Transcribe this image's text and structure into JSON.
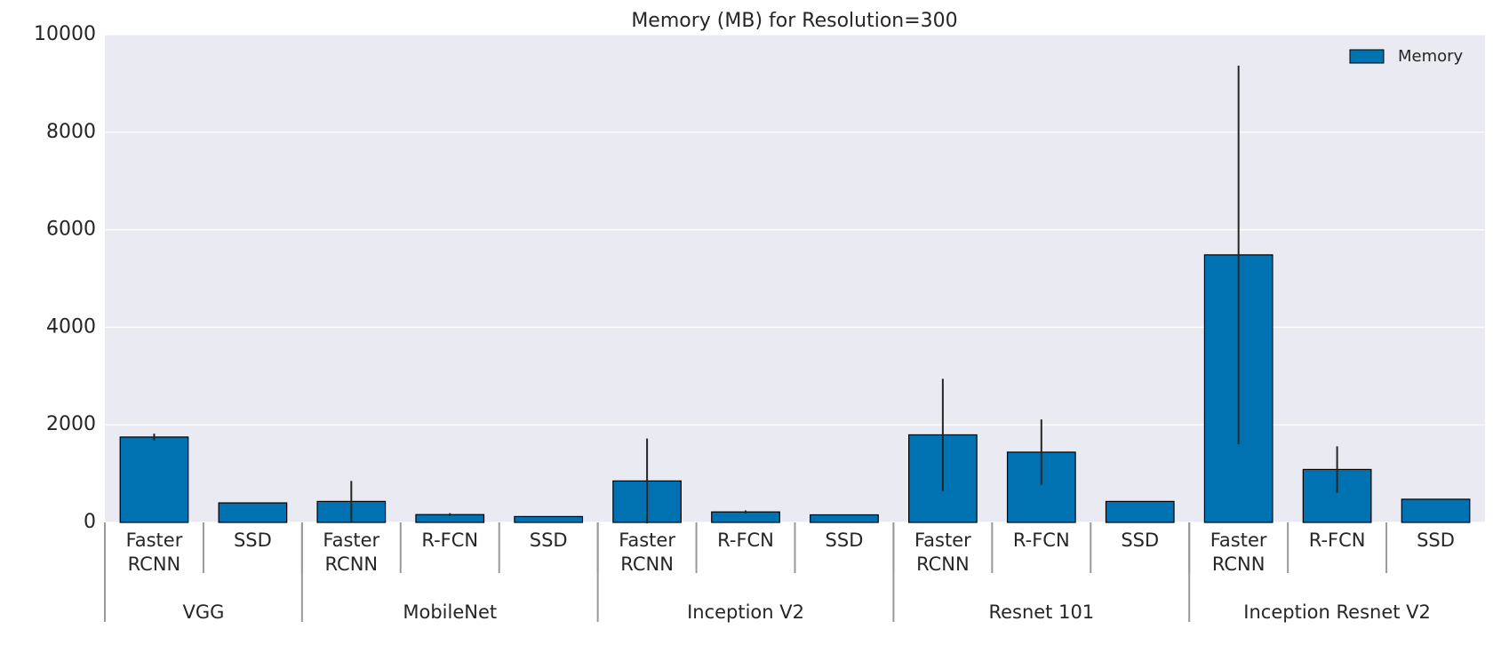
{
  "chart_data": {
    "type": "bar",
    "title": "Memory (MB) for Resolution=300",
    "categories": [
      "Faster RCNN",
      "SSD",
      "Faster RCNN",
      "R-FCN",
      "SSD",
      "Faster RCNN",
      "R-FCN",
      "SSD",
      "Faster RCNN",
      "R-FCN",
      "SSD",
      "Faster RCNN",
      "R-FCN",
      "SSD"
    ],
    "groups": [
      {
        "name": "VGG",
        "categories": [
          0,
          1
        ]
      },
      {
        "name": "MobileNet",
        "categories": [
          2,
          3,
          4
        ]
      },
      {
        "name": "Inception V2",
        "categories": [
          5,
          6,
          7
        ]
      },
      {
        "name": "Resnet 101",
        "categories": [
          8,
          9,
          10
        ]
      },
      {
        "name": "Inception Resnet V2",
        "categories": [
          11,
          12,
          13
        ]
      }
    ],
    "series": [
      {
        "name": "Memory",
        "color": "#0072b2",
        "values": [
          1750,
          400,
          430,
          160,
          120,
          850,
          215,
          155,
          1795,
          1440,
          430,
          5485,
          1085,
          475
        ],
        "errors": [
          70,
          null,
          420,
          30,
          null,
          870,
          30,
          null,
          1150,
          670,
          null,
          3880,
          475,
          null
        ]
      }
    ],
    "ylim": [
      0,
      10000
    ],
    "yticks": [
      0,
      2000,
      4000,
      6000,
      8000,
      10000
    ],
    "grid": true,
    "legend": "upper right"
  }
}
